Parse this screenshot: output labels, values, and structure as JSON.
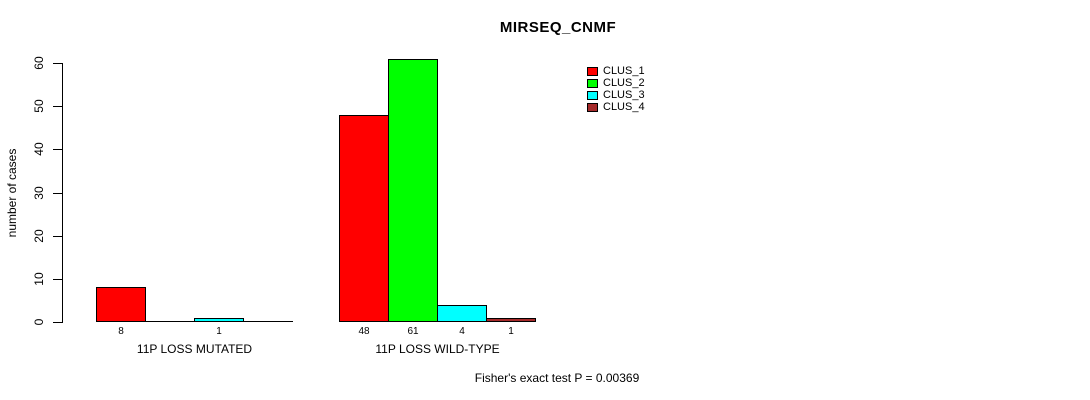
{
  "colors": {
    "background": "#FFFFFF",
    "axis": "#000000",
    "text": "#000000"
  },
  "chart_data": {
    "type": "bar",
    "title": "MIRSEQ_CNMF",
    "ylabel": "number of cases",
    "xlabel": "",
    "ylim": [
      0,
      60
    ],
    "yticks": [
      0,
      10,
      20,
      30,
      40,
      50,
      60
    ],
    "grid": false,
    "legend_position": "top-right",
    "categories": [
      "11P LOSS MUTATED",
      "11P LOSS WILD-TYPE"
    ],
    "series": [
      {
        "name": "CLUS_1",
        "color": "#FF0000",
        "values": [
          8,
          48
        ]
      },
      {
        "name": "CLUS_2",
        "color": "#00FF00",
        "values": [
          0,
          61
        ]
      },
      {
        "name": "CLUS_3",
        "color": "#00FFFF",
        "values": [
          1,
          4
        ]
      },
      {
        "name": "CLUS_4",
        "color": "#A52A2A",
        "values": [
          0,
          1
        ]
      }
    ],
    "bar_value_labels": [
      [
        "8",
        "",
        "1",
        ""
      ],
      [
        "48",
        "61",
        "4",
        "1"
      ]
    ],
    "annotation": "Fisher's exact test P = 0.00369"
  }
}
